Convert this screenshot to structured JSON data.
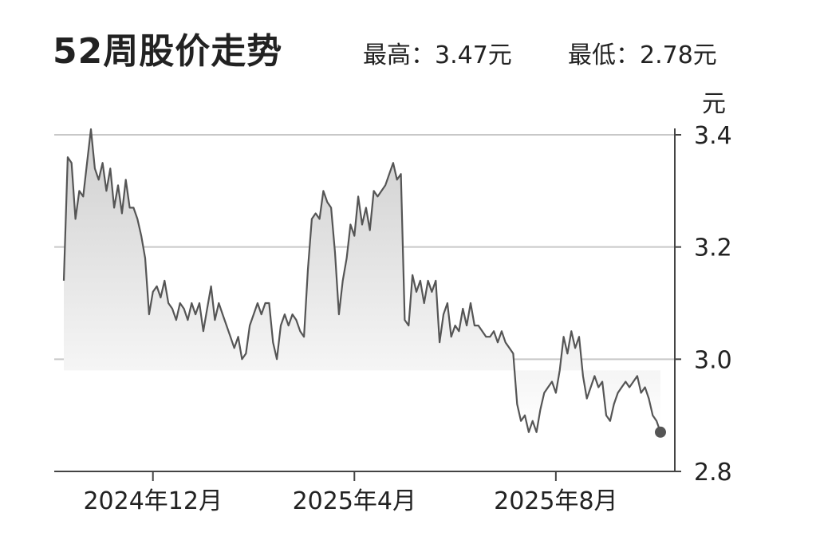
{
  "title": "52周股价走势",
  "stats": {
    "high_label": "最高：",
    "high_value": "3.47元",
    "low_label": "最低：",
    "low_value": "2.78元"
  },
  "colors": {
    "line": "#555555",
    "fill_top": "#cfcfcf",
    "fill_bottom": "#ffffff",
    "grid": "#c8c8c8",
    "axis": "#444444",
    "endpoint": "#555555"
  },
  "chart_data": {
    "type": "area",
    "title": "52周股价走势",
    "xlabel": "",
    "ylabel": "元",
    "ylim": [
      2.8,
      3.4
    ],
    "yticks": [
      2.8,
      3.0,
      3.2,
      3.4
    ],
    "y_tick_labels": [
      "2.8",
      "3.0",
      "3.2",
      "3.4"
    ],
    "x_tick_labels": [
      "2024年12月",
      "2025年4月",
      "2025年8月"
    ],
    "x_tick_indices": [
      23,
      75,
      127
    ],
    "grid": true,
    "y_axis_position": "right",
    "series": [
      {
        "values": [
          3.14,
          3.36,
          3.35,
          3.25,
          3.3,
          3.29,
          3.35,
          3.41,
          3.34,
          3.32,
          3.35,
          3.3,
          3.34,
          3.27,
          3.31,
          3.26,
          3.32,
          3.27,
          3.27,
          3.25,
          3.22,
          3.18,
          3.08,
          3.12,
          3.13,
          3.11,
          3.14,
          3.1,
          3.09,
          3.07,
          3.1,
          3.09,
          3.07,
          3.1,
          3.08,
          3.1,
          3.05,
          3.09,
          3.13,
          3.07,
          3.1,
          3.08,
          3.06,
          3.04,
          3.02,
          3.04,
          3.0,
          3.01,
          3.06,
          3.08,
          3.1,
          3.08,
          3.1,
          3.1,
          3.03,
          3.0,
          3.06,
          3.08,
          3.06,
          3.08,
          3.07,
          3.05,
          3.04,
          3.16,
          3.25,
          3.26,
          3.25,
          3.3,
          3.28,
          3.27,
          3.19,
          3.08,
          3.14,
          3.18,
          3.24,
          3.22,
          3.29,
          3.24,
          3.27,
          3.23,
          3.3,
          3.29,
          3.3,
          3.31,
          3.33,
          3.35,
          3.32,
          3.33,
          3.07,
          3.06,
          3.15,
          3.12,
          3.14,
          3.1,
          3.14,
          3.12,
          3.14,
          3.03,
          3.08,
          3.1,
          3.04,
          3.06,
          3.05,
          3.09,
          3.06,
          3.1,
          3.06,
          3.06,
          3.05,
          3.04,
          3.04,
          3.05,
          3.03,
          3.05,
          3.03,
          3.02,
          3.01,
          2.92,
          2.89,
          2.9,
          2.87,
          2.89,
          2.87,
          2.91,
          2.94,
          2.95,
          2.96,
          2.94,
          2.98,
          3.04,
          3.01,
          3.05,
          3.02,
          3.04,
          2.97,
          2.93,
          2.95,
          2.97,
          2.95,
          2.96,
          2.9,
          2.89,
          2.92,
          2.94,
          2.95,
          2.96,
          2.95,
          2.96,
          2.97,
          2.94,
          2.95,
          2.93,
          2.9,
          2.89,
          2.87
        ]
      }
    ]
  }
}
